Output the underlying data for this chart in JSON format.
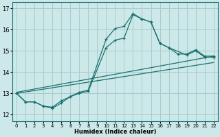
{
  "xlabel": "Humidex (Indice chaleur)",
  "xlim": [
    -0.5,
    22.5
  ],
  "ylim": [
    11.7,
    17.3
  ],
  "yticks": [
    12,
    13,
    14,
    15,
    16,
    17
  ],
  "xticks": [
    0,
    1,
    2,
    3,
    4,
    5,
    6,
    7,
    8,
    9,
    10,
    11,
    12,
    13,
    14,
    15,
    16,
    17,
    18,
    19,
    20,
    21,
    22
  ],
  "bg_color": "#cce8e8",
  "line_color": "#1a7070",
  "grid_color": "#aacccc",
  "lines": [
    {
      "x": [
        0,
        1,
        2,
        3,
        4,
        5,
        6,
        7,
        8,
        10,
        11,
        12,
        13,
        14,
        15,
        16,
        17,
        18,
        19,
        20,
        21,
        22
      ],
      "y": [
        13.0,
        12.6,
        12.6,
        12.4,
        12.3,
        12.55,
        12.85,
        13.05,
        13.15,
        15.55,
        16.05,
        16.15,
        16.75,
        16.5,
        16.35,
        15.35,
        15.15,
        14.85,
        14.85,
        15.05,
        14.75,
        14.75
      ]
    },
    {
      "x": [
        0,
        1,
        2,
        3,
        4,
        5,
        6,
        7,
        8,
        10,
        11,
        12,
        13,
        14,
        15,
        16,
        17,
        19,
        20,
        21,
        22
      ],
      "y": [
        13.0,
        12.6,
        12.6,
        12.4,
        12.35,
        12.65,
        12.85,
        13.0,
        13.1,
        15.15,
        15.5,
        15.6,
        16.7,
        16.5,
        16.35,
        15.35,
        15.15,
        14.8,
        15.0,
        14.7,
        14.7
      ]
    },
    {
      "x": [
        0,
        22
      ],
      "y": [
        13.0,
        14.45
      ]
    },
    {
      "x": [
        0,
        22
      ],
      "y": [
        13.05,
        14.75
      ]
    }
  ]
}
